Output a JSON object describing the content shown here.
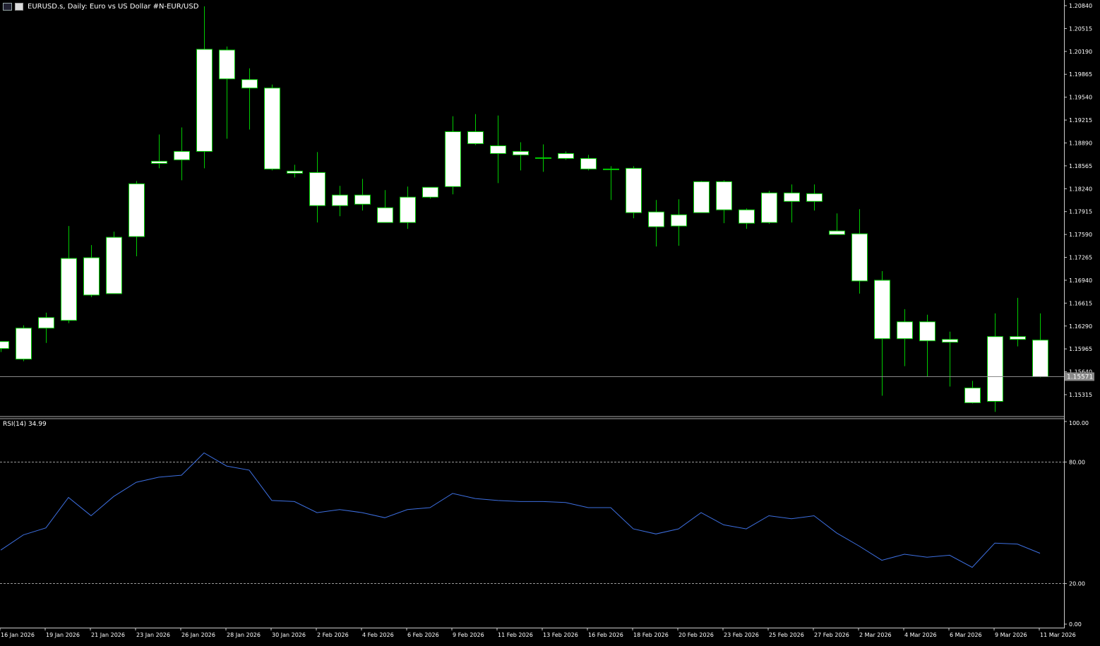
{
  "header": {
    "title": "EURUSD.s, Daily:  Euro vs US Dollar #N-EUR/USD"
  },
  "colors": {
    "background": "#000000",
    "candle_outline": "#00cc00",
    "candle_fill": "#ffffff",
    "rsi_line": "#3d6fe0",
    "grid_text": "#ffffff",
    "price_line": "#888888"
  },
  "price_axis": {
    "ticks": [
      "1.20840",
      "1.20515",
      "1.20190",
      "1.19865",
      "1.19540",
      "1.19215",
      "1.18890",
      "1.18565",
      "1.18240",
      "1.17915",
      "1.17590",
      "1.17265",
      "1.16940",
      "1.16615",
      "1.16290",
      "1.15965",
      "1.15640",
      "1.15315"
    ],
    "current_price": "1.15571"
  },
  "rsi": {
    "label": "RSI(14) 34.99",
    "levels": [
      "100.00",
      "80.00",
      "20.00",
      "0.00"
    ]
  },
  "time_axis": {
    "labels": [
      "16 Jan 2026",
      "19 Jan 2026",
      "21 Jan 2026",
      "23 Jan 2026",
      "26 Jan 2026",
      "28 Jan 2026",
      "30 Jan 2026",
      "2 Feb 2026",
      "4 Feb 2026",
      "6 Feb 2026",
      "9 Feb 2026",
      "11 Feb 2026",
      "13 Feb 2026",
      "16 Feb 2026",
      "18 Feb 2026",
      "20 Feb 2026",
      "23 Feb 2026",
      "25 Feb 2026",
      "27 Feb 2026",
      "2 Mar 2026",
      "4 Mar 2026",
      "6 Mar 2026",
      "9 Mar 2026",
      "11 Mar 2026"
    ]
  },
  "chart_data": {
    "type": "candlestick",
    "y_range": [
      1.151,
      1.209
    ],
    "candles": [
      {
        "o": 1.1597,
        "h": 1.1607,
        "l": 1.1592,
        "c": 1.1607
      },
      {
        "o": 1.1582,
        "h": 1.163,
        "l": 1.1579,
        "c": 1.1626
      },
      {
        "o": 1.1626,
        "h": 1.1648,
        "l": 1.1605,
        "c": 1.1641
      },
      {
        "o": 1.1637,
        "h": 1.1771,
        "l": 1.1633,
        "c": 1.1725
      },
      {
        "o": 1.1673,
        "h": 1.1744,
        "l": 1.167,
        "c": 1.1726
      },
      {
        "o": 1.1675,
        "h": 1.1763,
        "l": 1.1675,
        "c": 1.1755
      },
      {
        "o": 1.1756,
        "h": 1.1835,
        "l": 1.1728,
        "c": 1.1831
      },
      {
        "o": 1.1863,
        "h": 1.1901,
        "l": 1.1853,
        "c": 1.186
      },
      {
        "o": 1.1865,
        "h": 1.1911,
        "l": 1.1836,
        "c": 1.1877
      },
      {
        "o": 1.1877,
        "h": 1.2083,
        "l": 1.1853,
        "c": 1.2022
      },
      {
        "o": 1.2021,
        "h": 1.2026,
        "l": 1.1895,
        "c": 1.198
      },
      {
        "o": 1.1979,
        "h": 1.1995,
        "l": 1.1908,
        "c": 1.1967
      },
      {
        "o": 1.1967,
        "h": 1.1972,
        "l": 1.185,
        "c": 1.1852
      },
      {
        "o": 1.1849,
        "h": 1.1858,
        "l": 1.184,
        "c": 1.1846
      },
      {
        "o": 1.1847,
        "h": 1.1876,
        "l": 1.1776,
        "c": 1.18
      },
      {
        "o": 1.18,
        "h": 1.1828,
        "l": 1.1785,
        "c": 1.1815
      },
      {
        "o": 1.1815,
        "h": 1.1838,
        "l": 1.1793,
        "c": 1.1802
      },
      {
        "o": 1.1797,
        "h": 1.1822,
        "l": 1.1777,
        "c": 1.1776
      },
      {
        "o": 1.1776,
        "h": 1.1827,
        "l": 1.1767,
        "c": 1.1812
      },
      {
        "o": 1.1812,
        "h": 1.1826,
        "l": 1.181,
        "c": 1.1826
      },
      {
        "o": 1.1827,
        "h": 1.1927,
        "l": 1.1816,
        "c": 1.1905
      },
      {
        "o": 1.1905,
        "h": 1.193,
        "l": 1.1886,
        "c": 1.1888
      },
      {
        "o": 1.1885,
        "h": 1.1928,
        "l": 1.1832,
        "c": 1.1874
      },
      {
        "o": 1.1877,
        "h": 1.189,
        "l": 1.185,
        "c": 1.1872
      },
      {
        "o": 1.1868,
        "h": 1.1887,
        "l": 1.1848,
        "c": 1.1867
      },
      {
        "o": 1.1874,
        "h": 1.1877,
        "l": 1.1865,
        "c": 1.1867
      },
      {
        "o": 1.1867,
        "h": 1.1872,
        "l": 1.185,
        "c": 1.1852
      },
      {
        "o": 1.1852,
        "h": 1.1856,
        "l": 1.1808,
        "c": 1.1851
      },
      {
        "o": 1.1853,
        "h": 1.1856,
        "l": 1.1782,
        "c": 1.179
      },
      {
        "o": 1.1791,
        "h": 1.1808,
        "l": 1.1742,
        "c": 1.177
      },
      {
        "o": 1.1771,
        "h": 1.1809,
        "l": 1.1743,
        "c": 1.1787
      },
      {
        "o": 1.179,
        "h": 1.1835,
        "l": 1.179,
        "c": 1.1834
      },
      {
        "o": 1.1834,
        "h": 1.1836,
        "l": 1.1775,
        "c": 1.1794
      },
      {
        "o": 1.1794,
        "h": 1.1796,
        "l": 1.1767,
        "c": 1.1775
      },
      {
        "o": 1.1776,
        "h": 1.1821,
        "l": 1.1774,
        "c": 1.1818
      },
      {
        "o": 1.1818,
        "h": 1.183,
        "l": 1.1776,
        "c": 1.1806
      },
      {
        "o": 1.1806,
        "h": 1.183,
        "l": 1.1793,
        "c": 1.1817
      },
      {
        "o": 1.1764,
        "h": 1.1789,
        "l": 1.1759,
        "c": 1.1759
      },
      {
        "o": 1.176,
        "h": 1.1795,
        "l": 1.1675,
        "c": 1.1693
      },
      {
        "o": 1.1694,
        "h": 1.1707,
        "l": 1.153,
        "c": 1.1611
      },
      {
        "o": 1.1611,
        "h": 1.1653,
        "l": 1.1572,
        "c": 1.1635
      },
      {
        "o": 1.1635,
        "h": 1.1645,
        "l": 1.1557,
        "c": 1.1608
      },
      {
        "o": 1.161,
        "h": 1.1621,
        "l": 1.1543,
        "c": 1.1606
      },
      {
        "o": 1.1541,
        "h": 1.1551,
        "l": 1.1519,
        "c": 1.152
      },
      {
        "o": 1.1522,
        "h": 1.1647,
        "l": 1.1507,
        "c": 1.1614
      },
      {
        "o": 1.1614,
        "h": 1.1669,
        "l": 1.16,
        "c": 1.161
      },
      {
        "o": 1.1609,
        "h": 1.1647,
        "l": 1.1556,
        "c": 1.1557
      }
    ],
    "rsi_values": [
      36.5,
      44.0,
      47.5,
      62.5,
      53.5,
      63.0,
      70.0,
      72.5,
      73.5,
      84.5,
      78.0,
      76.0,
      61.0,
      60.5,
      55.0,
      56.5,
      55.0,
      52.5,
      56.5,
      57.5,
      64.5,
      62.0,
      61.0,
      60.5,
      60.5,
      60.0,
      57.5,
      57.5,
      47.0,
      44.5,
      47.0,
      55.0,
      49.0,
      47.0,
      53.5,
      52.0,
      53.5,
      45.0,
      38.5,
      31.5,
      34.5,
      33.0,
      34.0,
      28.0,
      40.0,
      39.5,
      34.99
    ],
    "rsi_range": [
      0,
      100
    ]
  }
}
